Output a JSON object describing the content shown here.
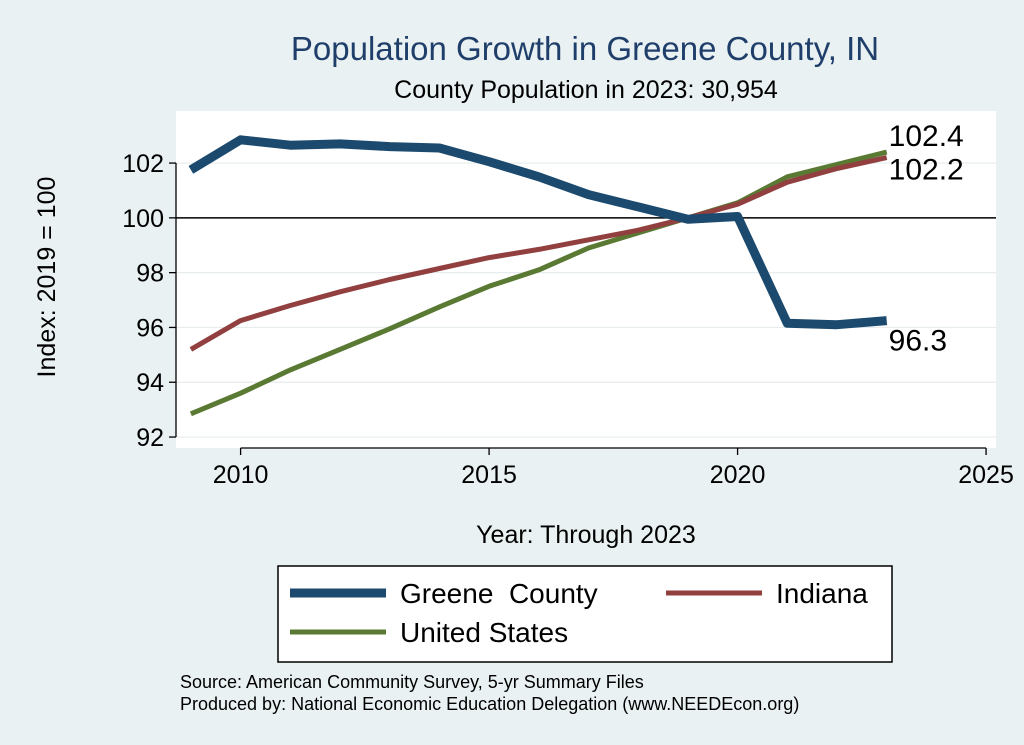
{
  "chart_data": {
    "type": "line",
    "title": "Population Growth in Greene County, IN",
    "subtitle": "County Population in 2023: 30,954",
    "ylabel": "Index: 2019 = 100",
    "xlabel": "Year: Through 2023",
    "xlim": [
      2008.7,
      2025.2
    ],
    "ylim": [
      91.6,
      103.9
    ],
    "x_ticks": [
      2010,
      2015,
      2020,
      2025
    ],
    "y_ticks": [
      92,
      94,
      96,
      98,
      100,
      102
    ],
    "reference_line": 100,
    "grid": true,
    "legend_placement": "bottom",
    "series": [
      {
        "name": "Greene  County",
        "color": "#1c4a6e",
        "width": 9,
        "x": [
          2009,
          2010,
          2011,
          2012,
          2013,
          2014,
          2015,
          2016,
          2017,
          2018,
          2019,
          2020,
          2021,
          2022,
          2023
        ],
        "y": [
          101.75,
          102.85,
          102.65,
          102.7,
          102.6,
          102.55,
          102.05,
          101.5,
          100.85,
          100.4,
          99.95,
          100.05,
          96.15,
          96.1,
          96.25
        ],
        "end_label": "96.3"
      },
      {
        "name": "Indiana",
        "color": "#913f3f",
        "width": 5,
        "x": [
          2009,
          2010,
          2011,
          2012,
          2013,
          2014,
          2015,
          2016,
          2017,
          2018,
          2019,
          2020,
          2021,
          2022,
          2023
        ],
        "y": [
          95.2,
          96.25,
          96.8,
          97.3,
          97.75,
          98.15,
          98.55,
          98.85,
          99.2,
          99.55,
          100.0,
          100.5,
          101.3,
          101.8,
          102.2
        ],
        "end_label": "102.2"
      },
      {
        "name": "United States",
        "color": "#5a7a34",
        "width": 5,
        "x": [
          2009,
          2010,
          2011,
          2012,
          2013,
          2014,
          2015,
          2016,
          2017,
          2018,
          2019,
          2020,
          2021,
          2022,
          2023
        ],
        "y": [
          92.85,
          93.6,
          94.45,
          95.2,
          95.95,
          96.75,
          97.5,
          98.1,
          98.9,
          99.45,
          100.0,
          100.55,
          101.5,
          101.95,
          102.4
        ],
        "end_label": "102.4"
      }
    ],
    "source_lines": [
      "Source: American Community Survey, 5-yr Summary Files",
      "Produced by: National Economic Education Delegation (www.NEEDEcon.org)"
    ]
  }
}
